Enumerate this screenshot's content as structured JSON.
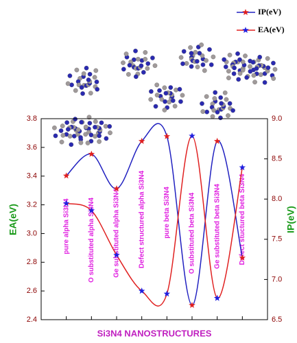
{
  "chart_data": {
    "type": "line",
    "categories": [
      "pure alpha Si3N4",
      "O substituted alpha Si3N4",
      "Ge substituted alpha Si3N4",
      "Defect structured alpha Si3N4",
      "pure beta Si3N4",
      "O substituted beta Si3N4",
      "Ge substituted beta Si3N4",
      "Defect stuctured beta Si3N4"
    ],
    "series": [
      {
        "name": "IP(eV)",
        "color": "#2020c0",
        "marker_color": "#e02020",
        "axis": "y2",
        "values": [
          8.29,
          8.56,
          8.13,
          8.72,
          8.78,
          6.68,
          8.72,
          7.27
        ]
      },
      {
        "name": "EA(eV)",
        "color": "#e02020",
        "marker_color": "#2020e0",
        "values": [
          3.21,
          3.16,
          2.85,
          2.6,
          2.58,
          3.68,
          2.55,
          3.46
        ]
      }
    ],
    "ylabel": "EA(eV)",
    "y2label": "IP(eV)",
    "xlabel": "Si3N4 NANOSTRUCTURES",
    "ylim": [
      2.4,
      3.8
    ],
    "yticks": [
      2.4,
      2.6,
      2.8,
      {
        "value": 3.0,
        "label": "3.0"
      },
      3.2,
      3.4,
      3.6,
      3.8
    ],
    "y2lim": [
      6.5,
      9.0
    ],
    "y2ticks": [
      6.5,
      {
        "value": 7.0,
        "label": "7.0"
      },
      7.5,
      {
        "value": 8.0,
        "label": "8.0"
      },
      8.5,
      {
        "value": 9.0,
        "label": "9.0"
      }
    ],
    "legend": "top-right"
  }
}
